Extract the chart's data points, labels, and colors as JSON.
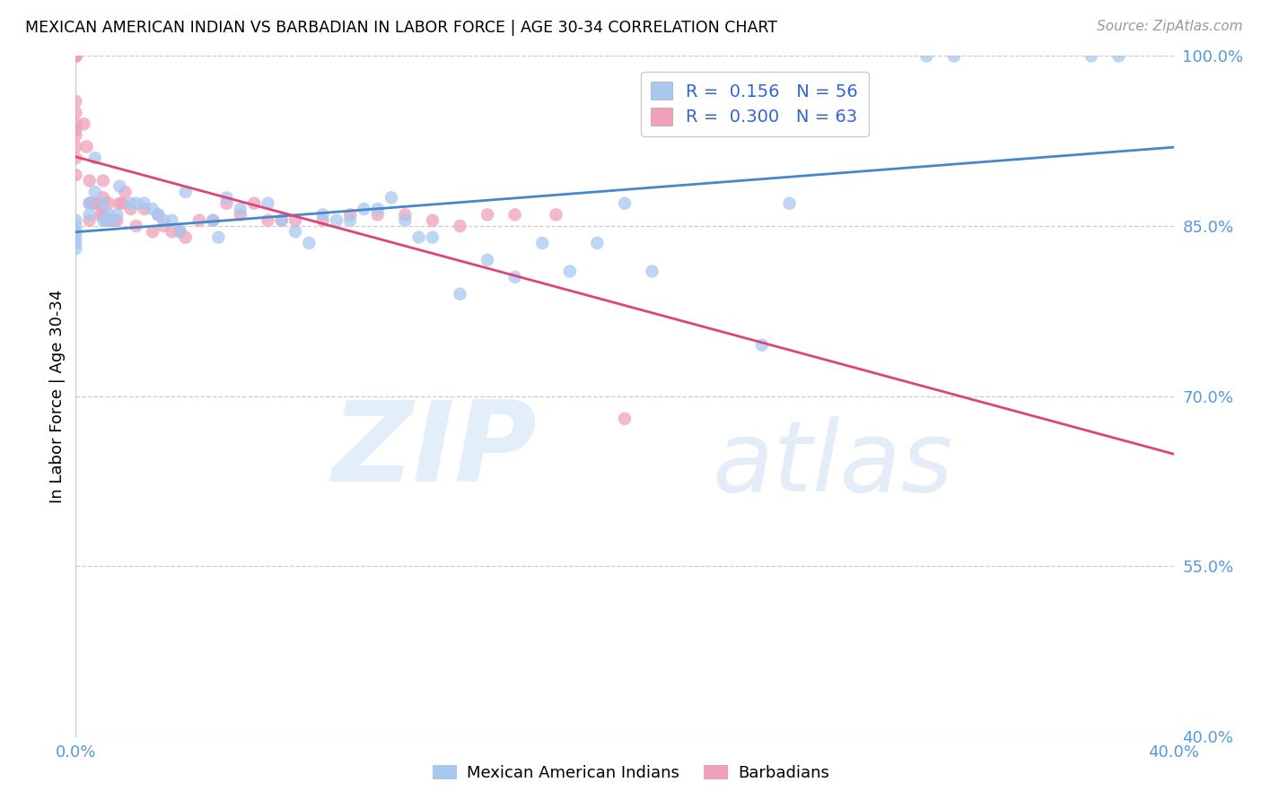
{
  "title": "MEXICAN AMERICAN INDIAN VS BARBADIAN IN LABOR FORCE | AGE 30-34 CORRELATION CHART",
  "source": "Source: ZipAtlas.com",
  "ylabel": "In Labor Force | Age 30-34",
  "xlim": [
    0.0,
    0.4
  ],
  "ylim": [
    0.4,
    1.0
  ],
  "yticks": [
    0.4,
    0.55,
    0.7,
    0.85,
    1.0
  ],
  "ytick_labels": [
    "40.0%",
    "55.0%",
    "70.0%",
    "85.0%",
    "100.0%"
  ],
  "xticks": [
    0.0,
    0.4
  ],
  "xtick_labels": [
    "0.0%",
    "40.0%"
  ],
  "blue_color": "#a8c8f0",
  "pink_color": "#f0a0b8",
  "blue_line_color": "#4488cc",
  "pink_line_color": "#dd4477",
  "legend_blue_R": "0.156",
  "legend_blue_N": "56",
  "legend_pink_R": "0.300",
  "legend_pink_N": "63",
  "watermark_zip": "ZIP",
  "watermark_atlas": "atlas",
  "blue_scatter_x": [
    0.0,
    0.0,
    0.0,
    0.0,
    0.0,
    0.0,
    0.005,
    0.005,
    0.007,
    0.007,
    0.01,
    0.01,
    0.012,
    0.013,
    0.015,
    0.016,
    0.02,
    0.022,
    0.025,
    0.028,
    0.03,
    0.032,
    0.035,
    0.038,
    0.04,
    0.05,
    0.052,
    0.055,
    0.06,
    0.07,
    0.075,
    0.08,
    0.085,
    0.09,
    0.095,
    0.1,
    0.105,
    0.11,
    0.115,
    0.12,
    0.125,
    0.13,
    0.14,
    0.15,
    0.16,
    0.17,
    0.18,
    0.19,
    0.2,
    0.21,
    0.25,
    0.26,
    0.31,
    0.32,
    0.37,
    0.38
  ],
  "blue_scatter_y": [
    0.855,
    0.85,
    0.845,
    0.84,
    0.835,
    0.83,
    0.87,
    0.86,
    0.91,
    0.88,
    0.87,
    0.855,
    0.86,
    0.855,
    0.86,
    0.885,
    0.87,
    0.87,
    0.87,
    0.865,
    0.86,
    0.855,
    0.855,
    0.845,
    0.88,
    0.855,
    0.84,
    0.875,
    0.865,
    0.87,
    0.855,
    0.845,
    0.835,
    0.86,
    0.855,
    0.855,
    0.865,
    0.865,
    0.875,
    0.855,
    0.84,
    0.84,
    0.79,
    0.82,
    0.805,
    0.835,
    0.81,
    0.835,
    0.87,
    0.81,
    0.745,
    0.87,
    1.0,
    1.0,
    1.0,
    1.0
  ],
  "pink_scatter_x": [
    0.0,
    0.0,
    0.0,
    0.0,
    0.0,
    0.0,
    0.0,
    0.0,
    0.0,
    0.0,
    0.0,
    0.0,
    0.0,
    0.0,
    0.0,
    0.0,
    0.003,
    0.004,
    0.005,
    0.005,
    0.005,
    0.006,
    0.007,
    0.008,
    0.009,
    0.01,
    0.01,
    0.01,
    0.011,
    0.012,
    0.013,
    0.014,
    0.015,
    0.016,
    0.017,
    0.018,
    0.02,
    0.022,
    0.025,
    0.028,
    0.03,
    0.032,
    0.035,
    0.038,
    0.04,
    0.045,
    0.05,
    0.055,
    0.06,
    0.065,
    0.07,
    0.075,
    0.08,
    0.09,
    0.1,
    0.11,
    0.12,
    0.13,
    0.14,
    0.15,
    0.16,
    0.175,
    0.2
  ],
  "pink_scatter_y": [
    1.0,
    1.0,
    1.0,
    1.0,
    1.0,
    1.0,
    1.0,
    1.0,
    0.96,
    0.95,
    0.94,
    0.935,
    0.93,
    0.92,
    0.91,
    0.895,
    0.94,
    0.92,
    0.89,
    0.87,
    0.855,
    0.87,
    0.87,
    0.87,
    0.86,
    0.89,
    0.875,
    0.86,
    0.855,
    0.87,
    0.855,
    0.855,
    0.855,
    0.87,
    0.87,
    0.88,
    0.865,
    0.85,
    0.865,
    0.845,
    0.86,
    0.85,
    0.845,
    0.845,
    0.84,
    0.855,
    0.855,
    0.87,
    0.86,
    0.87,
    0.855,
    0.855,
    0.855,
    0.855,
    0.86,
    0.86,
    0.86,
    0.855,
    0.85,
    0.86,
    0.86,
    0.86,
    0.68
  ]
}
